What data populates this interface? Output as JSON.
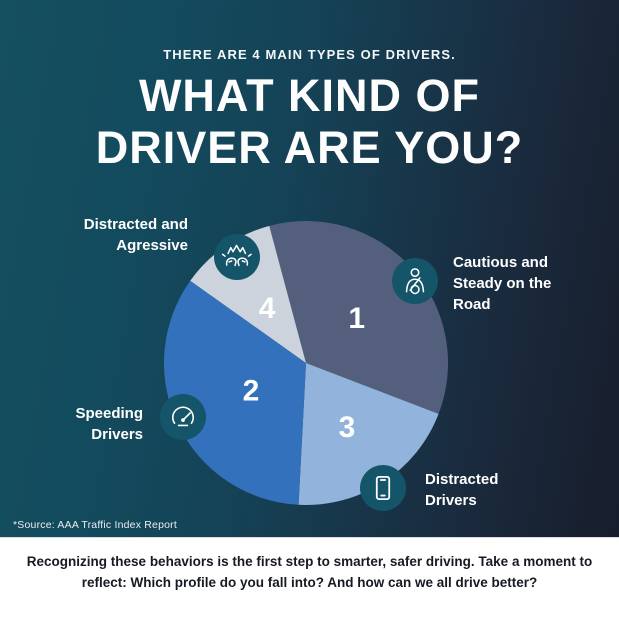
{
  "header": {
    "kicker": "THERE ARE 4 MAIN TYPES OF DRIVERS.",
    "title_line1": "WHAT KIND OF",
    "title_line2": "DRIVER ARE YOU?"
  },
  "chart_data": {
    "type": "pie",
    "title": "WHAT KIND OF DRIVER ARE YOU?",
    "start_angle_deg": -15,
    "direction": "clockwise",
    "radius_px": 142,
    "segments": [
      {
        "number": "1",
        "label": "Cautious and Steady on the Road",
        "value_pct": 35,
        "color": "#545f7d",
        "number_r": 0.48
      },
      {
        "number": "3",
        "label": "Distracted Drivers",
        "value_pct": 20,
        "color": "#92b4dc",
        "number_r": 0.53
      },
      {
        "number": "2",
        "label": "Speeding Drivers",
        "value_pct": 34,
        "color": "#3471bc",
        "number_r": 0.43
      },
      {
        "number": "4",
        "label": "Distracted and Agressive",
        "value_pct": 11,
        "color": "#ccd3dd",
        "number_r": 0.48
      }
    ]
  },
  "callouts": {
    "aggressive": {
      "icon": "road-rage-collision-icon",
      "lines": [
        "Distracted and",
        "Agressive"
      ]
    },
    "cautious": {
      "icon": "seatbelt-driver-icon",
      "lines": [
        "Cautious and",
        "Steady on the",
        "Road"
      ]
    },
    "speeding": {
      "icon": "speedometer-icon",
      "lines": [
        "Speeding",
        "Drivers"
      ]
    },
    "distracted": {
      "icon": "smartphone-icon",
      "lines": [
        "Distracted",
        "Drivers"
      ]
    }
  },
  "source_note": "*Source:  AAA Traffic Index Report",
  "footer": {
    "line1": "Recognizing these behaviors is the first step to smarter, safer driving. Take a moment to",
    "line2": "reflect: Which profile do you fall into? And how can we all drive better?"
  },
  "colors": {
    "background_left": "#15505f",
    "background_right": "#171d2b",
    "icon_circle": "#14556a",
    "number_text": "#ffffff",
    "footer_background": "#ffffff",
    "footer_text": "#161a22"
  }
}
